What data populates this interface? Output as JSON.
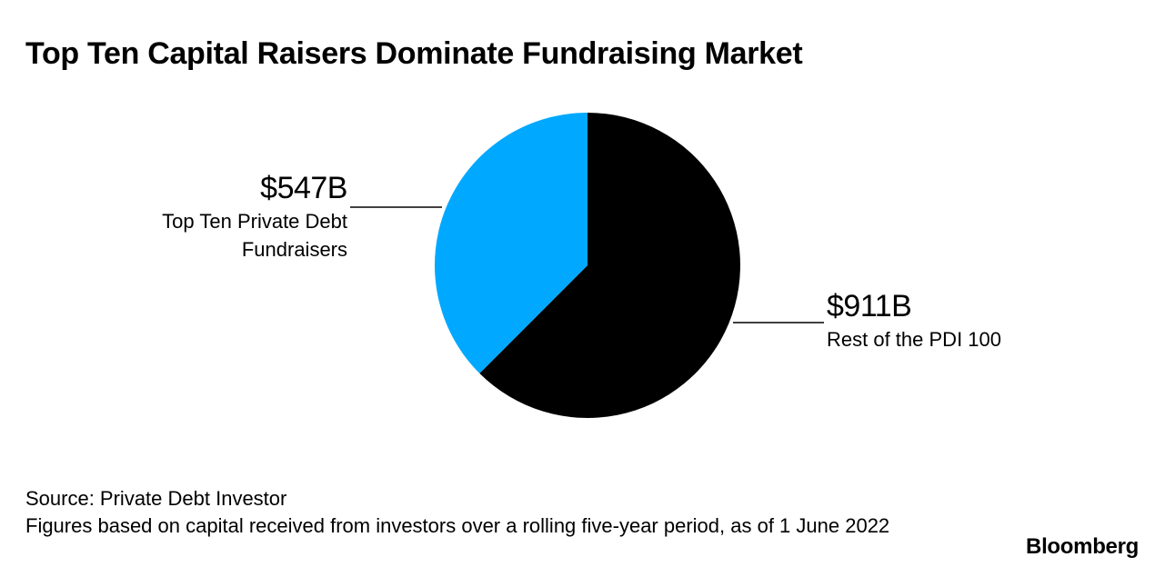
{
  "title": "Top Ten Capital Raisers Dominate Fundraising Market",
  "chart_data": {
    "type": "pie",
    "title": "Top Ten Capital Raisers Dominate Fundraising Market",
    "unit": "$B",
    "slices": [
      {
        "name": "Top Ten Private Debt Fundraisers",
        "value": 547,
        "value_label": "$547B",
        "color": "#00a9ff"
      },
      {
        "name": "Rest of the PDI 100",
        "value": 911,
        "value_label": "$911B",
        "color": "#000000"
      }
    ]
  },
  "footer": {
    "source": "Source: Private Debt Investor",
    "note": "Figures based on capital received from investors over a rolling five-year period, as of 1 June 2022"
  },
  "brand": "Bloomberg"
}
